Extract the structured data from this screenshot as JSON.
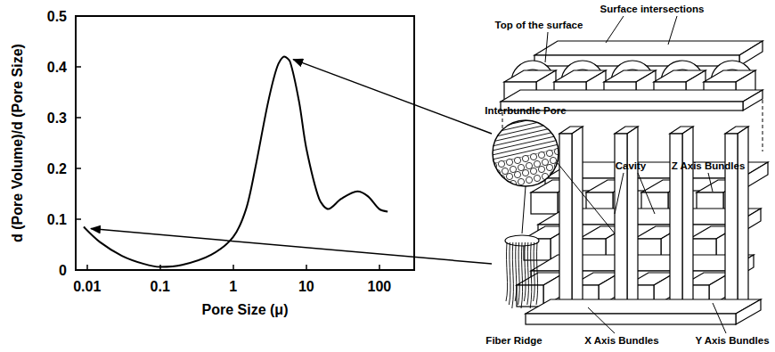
{
  "chart_data": {
    "type": "line",
    "xlabel": "Pore Size (μ)",
    "ylabel": "d (Pore Volume)/d (Pore Size)",
    "x": [
      0.009,
      0.015,
      0.03,
      0.06,
      0.1,
      0.2,
      0.5,
      1,
      1.5,
      2,
      3,
      4,
      5,
      6,
      8,
      10,
      15,
      20,
      30,
      50,
      70,
      100,
      130
    ],
    "values": [
      0.085,
      0.055,
      0.028,
      0.012,
      0.006,
      0.01,
      0.03,
      0.065,
      0.12,
      0.2,
      0.33,
      0.4,
      0.42,
      0.41,
      0.33,
      0.24,
      0.14,
      0.12,
      0.14,
      0.155,
      0.145,
      0.12,
      0.115
    ],
    "color": "#000000",
    "log": "x",
    "xlim": [
      0.007,
      300
    ],
    "xticks": [
      0.01,
      0.1,
      1,
      10,
      100
    ],
    "ylim": [
      0,
      0.5
    ],
    "yticks": [
      0,
      0.1,
      0.2,
      0.3,
      0.4,
      0.5
    ],
    "grid": false
  },
  "diagram": {
    "labels": {
      "top_of_surface": "Top of the surface",
      "surface_intersections": "Surface intersections",
      "interbundle_pore": "Interbundle Pore",
      "cavity": "Cavity",
      "z_axis_bundles": "Z Axis Bundles",
      "fiber_ridge": "Fiber Ridge",
      "x_axis_bundles": "X Axis Bundles",
      "y_axis_bundles": "Y Axis Bundles"
    }
  }
}
